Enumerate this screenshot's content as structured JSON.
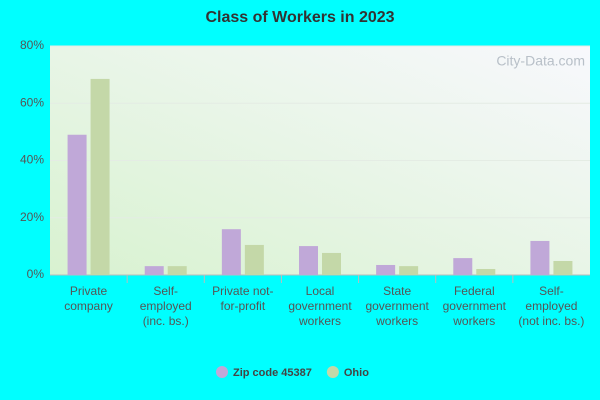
{
  "chart_data": {
    "type": "bar",
    "title": "Class of Workers in 2023",
    "watermark": "City-Data.com",
    "categories": [
      "Private company",
      "Self-employed (inc. bs.)",
      "Private not-for-profit",
      "Local government workers",
      "State government workers",
      "Federal government workers",
      "Self-employed (not inc. bs.)"
    ],
    "series": [
      {
        "name": "Zip code 45387",
        "color": "#c0a8d8",
        "values": [
          49,
          3.1,
          16,
          10.1,
          3.5,
          5.9,
          11.9
        ]
      },
      {
        "name": "Ohio",
        "color": "#c4d8a8",
        "values": [
          68.5,
          3.1,
          10.5,
          7.7,
          3.1,
          2.1,
          4.9
        ]
      }
    ],
    "ylim": [
      0,
      80
    ],
    "yticks": [
      {
        "value": 0,
        "label": "0%"
      },
      {
        "value": 20,
        "label": "20%"
      },
      {
        "value": 40,
        "label": "40%"
      },
      {
        "value": 60,
        "label": "60%"
      },
      {
        "value": 80,
        "label": "80%"
      }
    ],
    "grid": true,
    "legend": "bottom"
  }
}
